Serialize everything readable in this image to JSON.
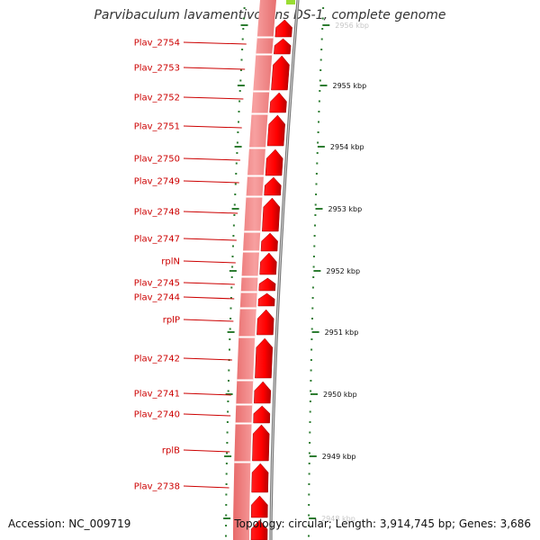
{
  "title": "Parvibaculum lavamentivorans DS-1, complete genome",
  "footer": {
    "accession": "Accession: NC_009719",
    "topology": "Topology: circular; Length: 3,914,745 bp; Genes: 3,686"
  },
  "genes": [
    {
      "name": "Plav_2754"
    },
    {
      "name": "Plav_2753"
    },
    {
      "name": "Plav_2752"
    },
    {
      "name": "Plav_2751"
    },
    {
      "name": "Plav_2750"
    },
    {
      "name": "Plav_2749"
    },
    {
      "name": "Plav_2748"
    },
    {
      "name": "Plav_2747"
    },
    {
      "name": "rplN"
    },
    {
      "name": "Plav_2745"
    },
    {
      "name": "Plav_2744"
    },
    {
      "name": "rplP"
    },
    {
      "name": "Plav_2742"
    },
    {
      "name": "Plav_2741"
    },
    {
      "name": "Plav_2740"
    },
    {
      "name": "rplB"
    },
    {
      "name": "Plav_2738"
    }
  ],
  "ticks": [
    {
      "label": "2956 kbp"
    },
    {
      "label": "2955 kbp"
    },
    {
      "label": "2954 kbp"
    },
    {
      "label": "2953 kbp"
    },
    {
      "label": "2952 kbp"
    },
    {
      "label": "2951 kbp"
    },
    {
      "label": "2950 kbp"
    },
    {
      "label": "2949 kbp"
    },
    {
      "label": "2948 kbp"
    }
  ],
  "colors": {
    "gene": "#ff0000",
    "gene_dark": "#cc0000",
    "backbone": "#f08080",
    "tick": "#2e7d32",
    "label": "#cc0000",
    "accent_green": "#99dd33",
    "outer_ring": "#777777"
  }
}
